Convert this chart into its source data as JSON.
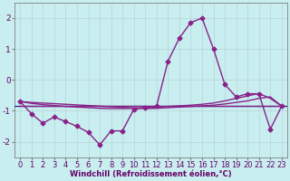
{
  "xlabel": "Windchill (Refroidissement éolien,°C)",
  "hours": [
    0,
    1,
    2,
    3,
    4,
    5,
    6,
    7,
    8,
    9,
    10,
    11,
    12,
    13,
    14,
    15,
    16,
    17,
    18,
    19,
    20,
    21,
    22,
    23
  ],
  "main_line": [
    -0.7,
    -1.1,
    -1.4,
    -1.2,
    -1.35,
    -1.5,
    -1.7,
    -2.1,
    -1.65,
    -1.65,
    -0.95,
    -0.9,
    -0.85,
    0.6,
    1.35,
    1.85,
    2.0,
    1.0,
    -0.15,
    -0.55,
    -0.45,
    -0.45,
    -1.6,
    -0.85
  ],
  "line_flat": [
    -0.85,
    -0.85,
    -0.85,
    -0.85,
    -0.85,
    -0.85,
    -0.85,
    -0.85,
    -0.85,
    -0.85,
    -0.85,
    -0.85,
    -0.85,
    -0.85,
    -0.85,
    -0.85,
    -0.85,
    -0.85,
    -0.85,
    -0.85,
    -0.85,
    -0.85,
    -0.85,
    -0.85
  ],
  "line_trend": [
    -0.7,
    -0.73,
    -0.75,
    -0.77,
    -0.79,
    -0.81,
    -0.83,
    -0.85,
    -0.87,
    -0.89,
    -0.91,
    -0.93,
    -0.92,
    -0.9,
    -0.88,
    -0.86,
    -0.84,
    -0.82,
    -0.78,
    -0.73,
    -0.68,
    -0.6,
    -0.55,
    -0.85
  ],
  "line_trend2": [
    -0.7,
    -0.76,
    -0.8,
    -0.83,
    -0.86,
    -0.88,
    -0.9,
    -0.92,
    -0.93,
    -0.93,
    -0.92,
    -0.9,
    -0.88,
    -0.86,
    -0.84,
    -0.82,
    -0.79,
    -0.75,
    -0.68,
    -0.6,
    -0.52,
    -0.44,
    -0.6,
    -0.85
  ],
  "hline_y": -0.85,
  "bg_color": "#c8eef0",
  "grid_color": "#b8d4d8",
  "line_color": "#882288",
  "hline_color": "#202080",
  "ylim": [
    -2.5,
    2.5
  ],
  "yticks": [
    -2,
    -1,
    0,
    1,
    2
  ],
  "marker": "D",
  "markersize": 2.5,
  "linewidth": 1.0,
  "tick_fontsize": 6.0,
  "label_fontsize": 6.0
}
